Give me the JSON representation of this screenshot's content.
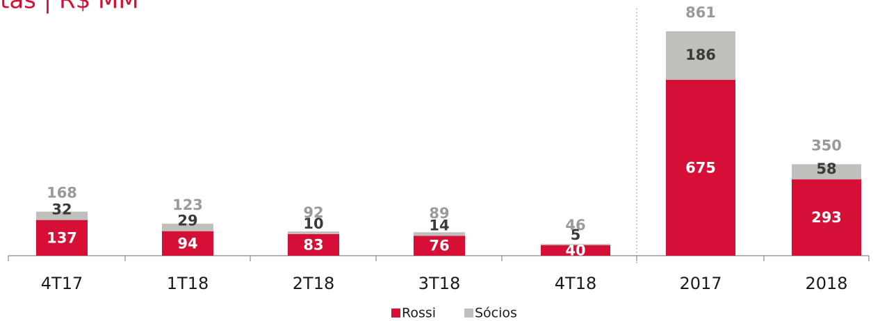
{
  "chart_data": {
    "type": "stacked_bar",
    "title": "tas | R$ MM",
    "categories": [
      "4T17",
      "1T18",
      "2T18",
      "3T18",
      "4T18",
      "2017",
      "2018"
    ],
    "series": [
      {
        "name": "Rossi",
        "color": "#d50f35",
        "values": [
          137,
          94,
          83,
          76,
          40,
          675,
          293
        ]
      },
      {
        "name": "Sócios",
        "color": "#bfbfbb",
        "values": [
          32,
          29,
          10,
          14,
          5,
          186,
          58
        ]
      }
    ],
    "totals": [
      168,
      123,
      92,
      89,
      46,
      861,
      350
    ],
    "legend": "bottom"
  }
}
